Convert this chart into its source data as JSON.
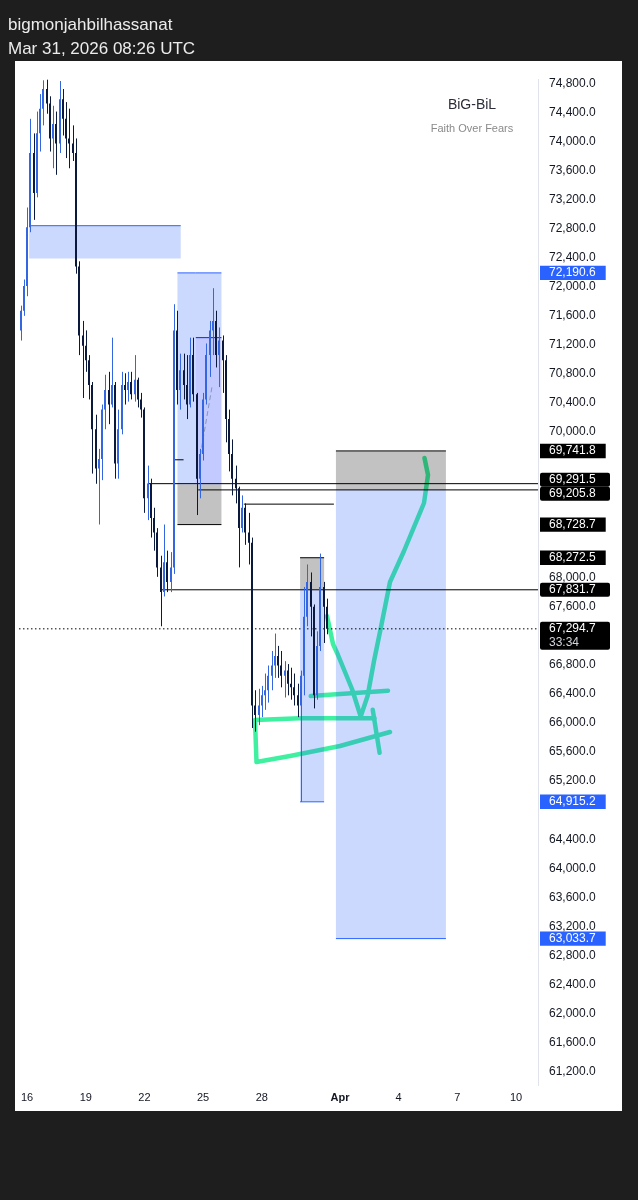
{
  "chart_data": {
    "type": "candlestick",
    "title": "bigmonjahbilhassanat",
    "subtitle": "Mar 31, 2026 08:26 UTC",
    "annotations": [
      "BiG-BiL",
      "Faith Over Fears",
      "33:34"
    ],
    "xlim": [
      "2026-03-15T14:00",
      "2026-04-11T03:00"
    ],
    "xticks": [
      {
        "value": "2026-03-16",
        "label": "16"
      },
      {
        "value": "2026-03-19",
        "label": "19"
      },
      {
        "value": "2026-03-22",
        "label": "22"
      },
      {
        "value": "2026-03-25",
        "label": "25"
      },
      {
        "value": "2026-03-28",
        "label": "28"
      },
      {
        "value": "2026-04-01",
        "label": "Apr"
      },
      {
        "value": "2026-04-04",
        "label": "4"
      },
      {
        "value": "2026-04-07",
        "label": "7"
      },
      {
        "value": "2026-04-10",
        "label": "10"
      }
    ],
    "ylim": [
      61020,
      74855
    ],
    "yticks": [
      {
        "value": 74800,
        "label": "74,800.0"
      },
      {
        "value": 74400,
        "label": "74,400.0"
      },
      {
        "value": 74000,
        "label": "74,000.0"
      },
      {
        "value": 73600,
        "label": "73,600.0"
      },
      {
        "value": 73200,
        "label": "73,200.0"
      },
      {
        "value": 72800,
        "label": "72,800.0"
      },
      {
        "value": 72400,
        "label": "72,400.0"
      },
      {
        "value": 72190.6,
        "label": "72,190.6"
      },
      {
        "value": 72000,
        "label": "72,000.0"
      },
      {
        "value": 71600,
        "label": "71,600.0"
      },
      {
        "value": 71200,
        "label": "71,200.0"
      },
      {
        "value": 70800,
        "label": "70,800.0"
      },
      {
        "value": 70400,
        "label": "70,400.0"
      },
      {
        "value": 70000,
        "label": "70,000.0"
      },
      {
        "value": 69741.8,
        "label": "69,741.8"
      },
      {
        "value": 68728.7,
        "label": "68,728.7"
      },
      {
        "value": 68272.5,
        "label": "68,272.5"
      },
      {
        "value": 68000,
        "label": "68,000.0"
      },
      {
        "value": 67600,
        "label": "67,600.0"
      },
      {
        "value": 66800,
        "label": "66,800.0"
      },
      {
        "value": 66400,
        "label": "66,400.0"
      },
      {
        "value": 66000,
        "label": "66,000.0"
      },
      {
        "value": 65600,
        "label": "65,600.0"
      },
      {
        "value": 65200,
        "label": "65,200.0"
      },
      {
        "value": 64915.2,
        "label": "64,915.2"
      },
      {
        "value": 64400,
        "label": "64,400.0"
      },
      {
        "value": 64000,
        "label": "64,000.0"
      },
      {
        "value": 63600,
        "label": "63,600.0"
      },
      {
        "value": 63200,
        "label": "63,200.0"
      },
      {
        "value": 63033.7,
        "label": "63,033.7"
      },
      {
        "value": 62800,
        "label": "62,800.0"
      },
      {
        "value": 62400,
        "label": "62,400.0"
      },
      {
        "value": 62000,
        "label": "62,000.0"
      },
      {
        "value": 61600,
        "label": "61,600.0"
      },
      {
        "value": 61200,
        "label": "61,200.0"
      }
    ],
    "ref_lines": [
      {
        "axis": "y",
        "value": 67294.7,
        "label": "67,294.7",
        "color": "#000000",
        "line_style": "dotted"
      }
    ],
    "series": [
      {
        "x": [
          "2026-03-15T16:00",
          "2026-03-15T20:00",
          "2026-03-16T00:00",
          "2026-03-16T04:00",
          "2026-03-16T08:00",
          "2026-03-16T12:00",
          "2026-03-16T16:00",
          "2026-03-16T20:00",
          "2026-03-17T00:00",
          "2026-03-17T04:00",
          "2026-03-17T08:00",
          "2026-03-17T12:00",
          "2026-03-17T16:00",
          "2026-03-17T20:00",
          "2026-03-18T00:00",
          "2026-03-18T04:00",
          "2026-03-18T08:00",
          "2026-03-18T12:00",
          "2026-03-18T16:00",
          "2026-03-18T20:00",
          "2026-03-19T00:00",
          "2026-03-19T04:00",
          "2026-03-19T08:00",
          "2026-03-19T12:00",
          "2026-03-19T16:00",
          "2026-03-19T20:00",
          "2026-03-20T00:00",
          "2026-03-20T04:00",
          "2026-03-20T08:00",
          "2026-03-20T12:00",
          "2026-03-20T16:00",
          "2026-03-20T20:00",
          "2026-03-21T00:00",
          "2026-03-21T04:00",
          "2026-03-21T08:00",
          "2026-03-21T12:00",
          "2026-03-21T16:00",
          "2026-03-21T20:00",
          "2026-03-22T00:00",
          "2026-03-22T04:00",
          "2026-03-22T08:00",
          "2026-03-22T12:00",
          "2026-03-22T16:00",
          "2026-03-22T20:00",
          "2026-03-23T00:00",
          "2026-03-23T04:00",
          "2026-03-23T08:00",
          "2026-03-23T12:00",
          "2026-03-23T16:00",
          "2026-03-23T20:00",
          "2026-03-24T00:00",
          "2026-03-24T04:00",
          "2026-03-24T08:00",
          "2026-03-24T12:00",
          "2026-03-24T16:00",
          "2026-03-24T20:00",
          "2026-03-25T00:00",
          "2026-03-25T04:00",
          "2026-03-25T08:00",
          "2026-03-25T12:00",
          "2026-03-25T16:00",
          "2026-03-25T20:00",
          "2026-03-26T00:00",
          "2026-03-26T04:00",
          "2026-03-26T08:00",
          "2026-03-26T12:00",
          "2026-03-26T16:00",
          "2026-03-26T20:00",
          "2026-03-27T00:00",
          "2026-03-27T04:00",
          "2026-03-27T08:00",
          "2026-03-27T12:00",
          "2026-03-27T16:00",
          "2026-03-27T20:00",
          "2026-03-28T00:00",
          "2026-03-28T04:00",
          "2026-03-28T08:00",
          "2026-03-28T12:00",
          "2026-03-28T16:00",
          "2026-03-28T20:00",
          "2026-03-29T00:00",
          "2026-03-29T04:00",
          "2026-03-29T08:00",
          "2026-03-29T12:00",
          "2026-03-29T16:00",
          "2026-03-29T20:00",
          "2026-03-30T00:00",
          "2026-03-30T04:00",
          "2026-03-30T08:00",
          "2026-03-30T12:00",
          "2026-03-30T16:00",
          "2026-03-30T20:00",
          "2026-03-31T00:00",
          "2026-03-31T04:00",
          "2026-03-31T08:00"
        ],
        "ohlc": [
          [
            71400,
            71740,
            71260,
            71670
          ],
          [
            71670,
            72100,
            71600,
            72010
          ],
          [
            72010,
            73090,
            71870,
            72820
          ],
          [
            72820,
            74310,
            72750,
            73840
          ],
          [
            73840,
            74110,
            72920,
            73290
          ],
          [
            73290,
            74410,
            73230,
            74110
          ],
          [
            74110,
            74650,
            73860,
            74450
          ],
          [
            74450,
            74840,
            74220,
            74720
          ],
          [
            74720,
            74850,
            74380,
            74520
          ],
          [
            74520,
            74620,
            73860,
            74040
          ],
          [
            74040,
            74490,
            73630,
            74240
          ],
          [
            74240,
            74410,
            73540,
            73970
          ],
          [
            73970,
            74830,
            73840,
            74580
          ],
          [
            74580,
            74720,
            74080,
            74310
          ],
          [
            74310,
            74540,
            73770,
            74040
          ],
          [
            74040,
            74450,
            73630,
            73970
          ],
          [
            73970,
            74220,
            73730,
            73840
          ],
          [
            73840,
            74040,
            72180,
            72280
          ],
          [
            72280,
            72350,
            71060,
            71330
          ],
          [
            71330,
            71530,
            70470,
            71190
          ],
          [
            71190,
            71400,
            70830,
            70990
          ],
          [
            70990,
            71060,
            70450,
            70650
          ],
          [
            70650,
            70690,
            69430,
            70040
          ],
          [
            70040,
            70240,
            69290,
            69500
          ],
          [
            69500,
            69770,
            68730,
            69630
          ],
          [
            69630,
            70380,
            69340,
            70310
          ],
          [
            70310,
            70790,
            70040,
            70580
          ],
          [
            70580,
            70830,
            70110,
            70380
          ],
          [
            70380,
            71300,
            70340,
            70650
          ],
          [
            70650,
            70690,
            69360,
            69570
          ],
          [
            69570,
            70310,
            69360,
            70040
          ],
          [
            70040,
            70830,
            69970,
            70650
          ],
          [
            70650,
            70810,
            70380,
            70580
          ],
          [
            70580,
            70830,
            70420,
            70690
          ],
          [
            70690,
            70830,
            70450,
            70520
          ],
          [
            70520,
            71060,
            70420,
            70720
          ],
          [
            70720,
            70750,
            70340,
            70450
          ],
          [
            70450,
            70540,
            70200,
            70310
          ],
          [
            70310,
            70340,
            68890,
            69090
          ],
          [
            69090,
            69540,
            68790,
            69290
          ],
          [
            69290,
            69360,
            68550,
            68820
          ],
          [
            68820,
            68960,
            68370,
            68620
          ],
          [
            68620,
            68680,
            68010,
            68140
          ],
          [
            68140,
            68300,
            67330,
            67800
          ],
          [
            67800,
            68730,
            67740,
            68210
          ],
          [
            68210,
            68370,
            67800,
            67940
          ],
          [
            67940,
            68350,
            67800,
            68140
          ],
          [
            68140,
            71760,
            68050,
            71400
          ],
          [
            71400,
            71670,
            70380,
            70580
          ],
          [
            70580,
            71080,
            70310,
            70850
          ],
          [
            70850,
            71080,
            70450,
            70650
          ],
          [
            70650,
            71060,
            70180,
            70380
          ],
          [
            70380,
            71300,
            70340,
            71060
          ],
          [
            71060,
            71300,
            70420,
            70520
          ],
          [
            70520,
            70540,
            68860,
            69360
          ],
          [
            69360,
            69770,
            69090,
            69700
          ],
          [
            69700,
            70540,
            69610,
            70450
          ],
          [
            70450,
            71220,
            70380,
            71060
          ],
          [
            71060,
            71530,
            70760,
            71400
          ],
          [
            71400,
            71980,
            71060,
            71530
          ],
          [
            71530,
            71670,
            70890,
            71060
          ],
          [
            71060,
            71440,
            70620,
            71260
          ],
          [
            71260,
            71330,
            70540,
            70990
          ],
          [
            70990,
            71060,
            69860,
            70180
          ],
          [
            70180,
            70310,
            69460,
            69700
          ],
          [
            69700,
            69900,
            69130,
            69360
          ],
          [
            69360,
            69540,
            69020,
            69230
          ],
          [
            69230,
            69250,
            68140,
            68680
          ],
          [
            68680,
            69130,
            68620,
            68960
          ],
          [
            68960,
            69020,
            68450,
            68620
          ],
          [
            68620,
            68890,
            68180,
            68480
          ],
          [
            68480,
            68550,
            65930,
            66240
          ],
          [
            66240,
            66450,
            65880,
            66110
          ],
          [
            66110,
            66470,
            65970,
            66240
          ],
          [
            66240,
            66510,
            66080,
            66380
          ],
          [
            66380,
            66680,
            66180,
            66450
          ],
          [
            66450,
            66790,
            66280,
            66650
          ],
          [
            66650,
            66990,
            66450,
            66790
          ],
          [
            66790,
            67230,
            66620,
            66920
          ],
          [
            66920,
            67060,
            66620,
            66790
          ],
          [
            66790,
            66990,
            66490,
            66650
          ],
          [
            66650,
            66850,
            66350,
            66720
          ],
          [
            66720,
            66810,
            66380,
            66540
          ],
          [
            66540,
            66760,
            66320,
            66490
          ],
          [
            66490,
            66680,
            66240,
            66380
          ],
          [
            66380,
            66540,
            66080,
            66240
          ],
          [
            66240,
            66720,
            64915.2,
            66650
          ],
          [
            66650,
            67870,
            66380,
            67460
          ],
          [
            67460,
            68180,
            67330,
            67940
          ],
          [
            67940,
            68070,
            67190,
            67600
          ],
          [
            67600,
            67630,
            66200,
            66380
          ],
          [
            66380,
            67260,
            66320,
            67060
          ],
          [
            67060,
            68330,
            66990,
            67870
          ],
          [
            67870,
            67940,
            67100,
            67600
          ],
          [
            67600,
            67710,
            67220,
            67294.7
          ]
        ],
        "colors": [
          "#3366e0",
          "#3366e0",
          "#3366e0",
          "#3366e0",
          "#0b1a3c",
          "#3366e0",
          "#3366e0",
          "#3366e0",
          "#0b1a3c",
          "#0b1a3c",
          "#3366e0",
          "#0b1a3c",
          "#3366e0",
          "#0b1a3c",
          "#0b1a3c",
          "#0b1a3c",
          "#0b1a3c",
          "#0b1a3c",
          "#0b1a3c",
          "#0b1a3c",
          "#0b1a3c",
          "#0b1a3c",
          "#0b1a3c",
          "#0b1a3c",
          "#3366e0",
          "#3366e0",
          "#3366e0",
          "#0b1a3c",
          "#3366e0",
          "#0b1a3c",
          "#3366e0",
          "#3366e0",
          "#0b1a3c",
          "#3366e0",
          "#0b1a3c",
          "#3366e0",
          "#0b1a3c",
          "#0b1a3c",
          "#0b1a3c",
          "#3366e0",
          "#0b1a3c",
          "#0b1a3c",
          "#0b1a3c",
          "#0b1a3c",
          "#3366e0",
          "#0b1a3c",
          "#3366e0",
          "#3366e0",
          "#0b1a3c",
          "#3366e0",
          "#0b1a3c",
          "#0b1a3c",
          "#3366e0",
          "#0b1a3c",
          "#0b1a3c",
          "#3366e0",
          "#3366e0",
          "#3366e0",
          "#3366e0",
          "#3366e0",
          "#0b1a3c",
          "#3366e0",
          "#0b1a3c",
          "#0b1a3c",
          "#0b1a3c",
          "#0b1a3c",
          "#0b1a3c",
          "#0b1a3c",
          "#3366e0",
          "#0b1a3c",
          "#0b1a3c",
          "#0b1a3c",
          "#0b1a3c",
          "#3366e0",
          "#3366e0",
          "#3366e0",
          "#3366e0",
          "#3366e0",
          "#3366e0",
          "#0b1a3c",
          "#0b1a3c",
          "#3366e0",
          "#0b1a3c",
          "#0b1a3c",
          "#0b1a3c",
          "#0b1a3c",
          "#3366e0",
          "#3366e0",
          "#3366e0",
          "#0b1a3c",
          "#0b1a3c",
          "#3366e0",
          "#3366e0",
          "#0b1a3c",
          "#0b1a3c"
        ]
      },
      {
        "type": "line",
        "x": [
          "2026-03-16T02:30",
          "2026-03-23T20:30"
        ],
        "values": [
          72840,
          72840
        ],
        "lower": [
          72390,
          72390
        ],
        "upper": [
          72840,
          72840
        ],
        "color": "#2962ff"
      },
      {
        "type": "line",
        "x": [
          "2026-03-23T16:30",
          "2026-03-24T15:00",
          "2026-03-24T15:00",
          "2026-03-25T22:30"
        ],
        "values": [
          72190.6,
          72190.6,
          72190.6,
          72190.6
        ],
        "lower": [
          69280,
          69280,
          71300,
          71300
        ],
        "upper": [
          72190.6,
          72190.6,
          72190.6,
          72190.6
        ],
        "color": "#2962ff"
      },
      {
        "type": "line",
        "x": [
          "2026-03-24T15:00",
          "2026-03-25T22:30"
        ],
        "values": [
          71300,
          71300
        ],
        "lower": [
          69280,
          69280
        ],
        "upper": [
          71300,
          71300
        ],
        "color": "#0020ff"
      },
      {
        "type": "line",
        "x": [
          "2026-03-23T16:30",
          "2026-03-25T22:30"
        ],
        "values": [
          68728.7,
          68728.7
        ],
        "lower": [
          68728.7,
          68728.7
        ],
        "upper": [
          69280,
          69280
        ],
        "color": "#000000"
      },
      {
        "type": "line",
        "x": [
          "2026-03-24T20:30",
          "2026-03-25T11:00"
        ],
        "values": [
          69680,
          70630
        ],
        "color": "#8896b8",
        "line_style": "dashed"
      },
      {
        "type": "line",
        "x": [
          "2026-03-29T23:00",
          "2026-03-31T04:30"
        ],
        "values": [
          68272.5,
          68272.5
        ],
        "lower": [
          67840,
          67840
        ],
        "upper": [
          68272.5,
          68272.5
        ],
        "color": "#000000"
      },
      {
        "type": "line",
        "x": [
          "2026-03-29T23:00",
          "2026-03-31T04:30"
        ],
        "values": [
          64915.2,
          64915.2
        ],
        "lower": [
          64915.2,
          64915.2
        ],
        "upper": [
          67840,
          67840
        ],
        "color": "#2962ff"
      },
      {
        "type": "line",
        "x": [
          "2026-03-31T19:00",
          "2026-04-06T10:00"
        ],
        "values": [
          69741.8,
          69741.8
        ],
        "lower": [
          69205.8,
          69205.8
        ],
        "upper": [
          69741.8,
          69741.8
        ],
        "color": "#000000"
      },
      {
        "type": "line",
        "x": [
          "2026-03-31T19:00",
          "2026-04-06T10:00"
        ],
        "values": [
          63033.7,
          63033.7
        ],
        "lower": [
          63033.7,
          63033.7
        ],
        "upper": [
          69205.8,
          69205.8
        ],
        "color": "#2962ff"
      },
      {
        "type": "line",
        "x": [
          "2026-03-22T04:00",
          "2026-04-11T03:00"
        ],
        "values": [
          69291.5,
          69291.5
        ],
        "value_labels": [
          null,
          "69,291.5"
        ],
        "color": "#000000"
      },
      {
        "type": "line",
        "x": [
          "2026-03-24T18:00",
          "2026-04-11T03:00"
        ],
        "values": [
          69205.8,
          69205.8
        ],
        "value_labels": [
          null,
          "69,205.8"
        ],
        "color": "#000000"
      },
      {
        "type": "line",
        "x": [
          "2026-03-22T20:00",
          "2026-04-11T03:00"
        ],
        "values": [
          67831.7,
          67831.7
        ],
        "value_labels": [
          null,
          "67,831.7"
        ],
        "color": "#000000"
      },
      {
        "type": "line",
        "x": [
          "2026-03-27T02:00",
          "2026-03-31T16:30"
        ],
        "values": [
          69010,
          69010
        ],
        "color": "#000000"
      },
      {
        "type": "line",
        "x": [
          "2026-03-23T12:30",
          "2026-03-24T00:00"
        ],
        "values": [
          69620,
          69620
        ],
        "color": "#000000"
      }
    ]
  }
}
